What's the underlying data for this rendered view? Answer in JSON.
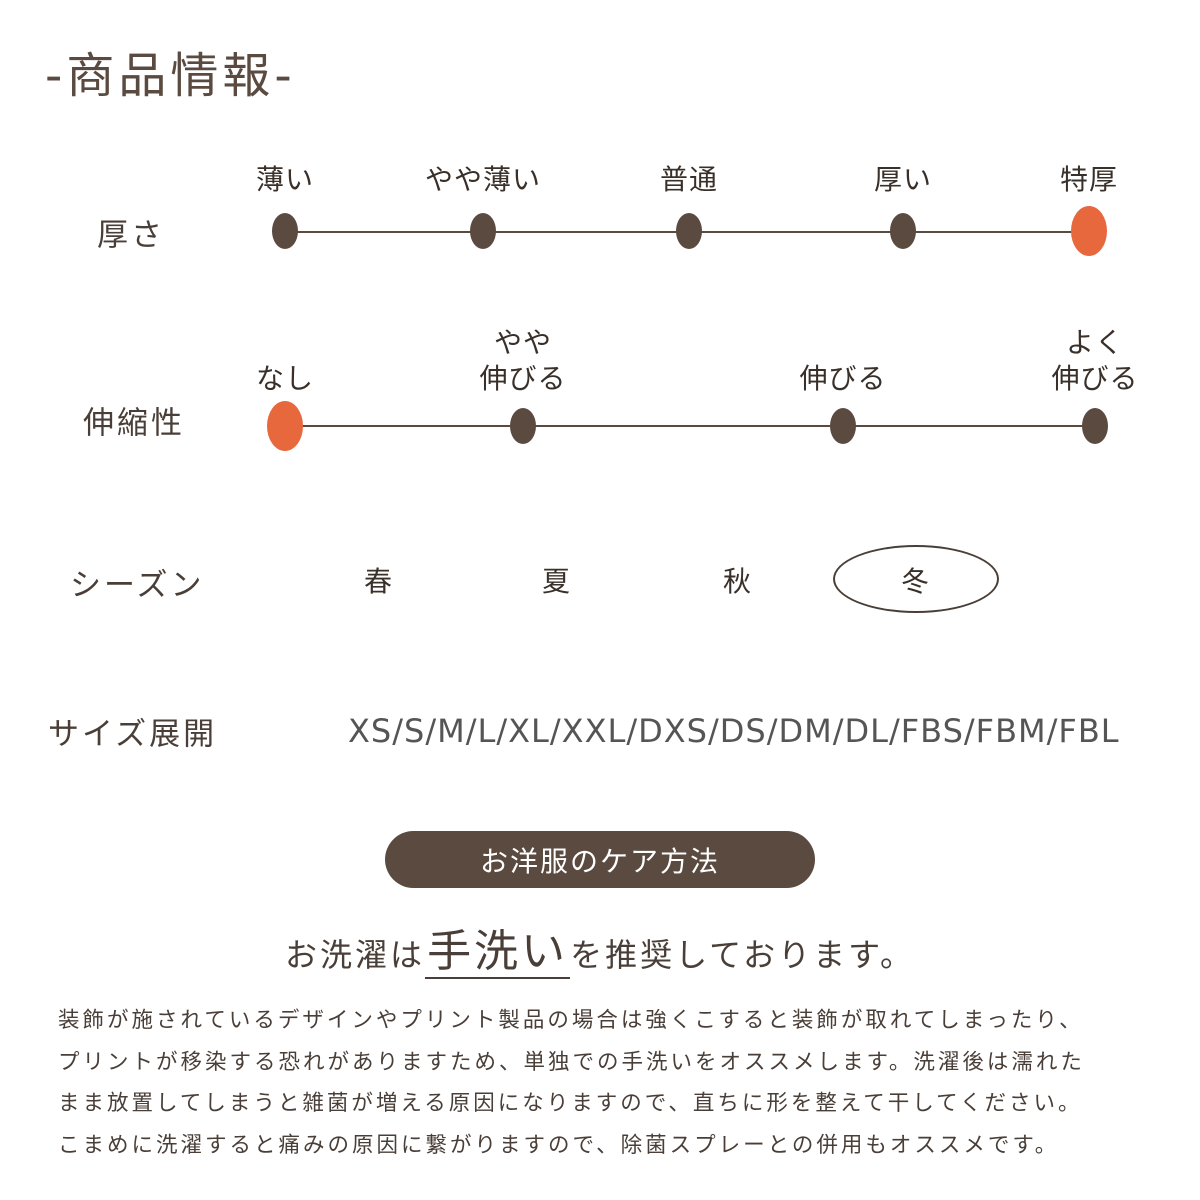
{
  "title": "-商品情報-",
  "accent_color": "#e8683e",
  "base_color": "#5a4a40",
  "thickness": {
    "label": "厚さ",
    "options": [
      "薄い",
      "やや薄い",
      "普通",
      "厚い",
      "特厚"
    ],
    "selected": "特厚"
  },
  "stretch": {
    "label": "伸縮性",
    "options": [
      [
        "なし"
      ],
      [
        "やや",
        "伸びる"
      ],
      [
        "伸びる"
      ],
      [
        "よく",
        "伸びる"
      ]
    ],
    "selected": "なし"
  },
  "season": {
    "label": "シーズン",
    "options": [
      "春",
      "夏",
      "秋",
      "冬"
    ],
    "selected": "冬"
  },
  "sizes": {
    "label": "サイズ展開",
    "value": "XS/S/M/L/XL/XXL/DXS/DS/DM/DL/FBS/FBM/FBL"
  },
  "care": {
    "button_label": "お洋服のケア方法",
    "headline_pre": "お洗濯は",
    "headline_em": "手洗い",
    "headline_post": "を推奨しております。",
    "lines": [
      "装飾が施されているデザインやプリント製品の場合は強くこすると装飾が取れてしまったり、",
      "プリントが移染する恐れがありますため、単独での手洗いをオススメします。洗濯後は濡れた",
      "まま放置してしまうと雑菌が増える原因になりますので、直ちに形を整えて干してください。",
      "こまめに洗濯すると痛みの原因に繋がりますので、除菌スプレーとの併用もオススメです。"
    ]
  }
}
